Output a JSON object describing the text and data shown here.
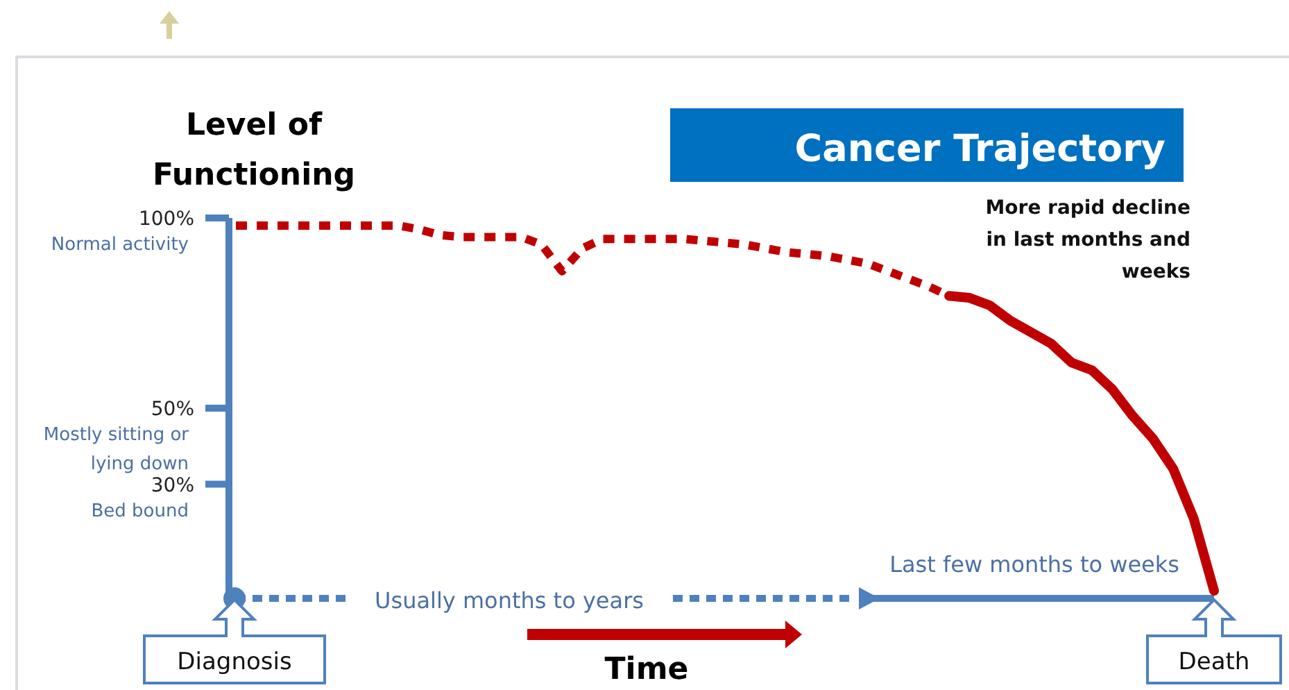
{
  "chart_data": {
    "type": "line",
    "title": "Cancer Trajectory",
    "ylabel": "Level of Functioning",
    "categories": [
      null,
      null,
      null,
      null,
      null,
      null,
      null,
      null,
      null,
      null,
      null,
      null,
      null,
      null,
      null,
      null,
      null,
      null,
      null,
      null,
      null,
      null,
      null,
      null,
      null,
      null,
      null,
      null,
      null,
      null,
      null,
      null,
      null,
      null,
      null,
      null,
      null,
      null,
      null,
      null,
      null,
      null,
      null,
      null,
      null,
      null,
      null,
      null,
      null
    ],
    "series": [
      {
        "color": "#c00000",
        "line_style": "dotted",
        "values": [
          98,
          98,
          98,
          98,
          98,
          98,
          98,
          98,
          98,
          97,
          95.5,
          95,
          95,
          95,
          95,
          93,
          86,
          92,
          94.5,
          94.5,
          94.5,
          94.5,
          94.5,
          94,
          93.5,
          93,
          92,
          91,
          90.5,
          90,
          89,
          88,
          86,
          84,
          82,
          79.5,
          null,
          null,
          null,
          null,
          null,
          null,
          null,
          null,
          null,
          null,
          null,
          null,
          null
        ]
      },
      {
        "color": "#c00000",
        "line_style": "solid",
        "values": [
          null,
          null,
          null,
          null,
          null,
          null,
          null,
          null,
          null,
          null,
          null,
          null,
          null,
          null,
          null,
          null,
          null,
          null,
          null,
          null,
          null,
          null,
          null,
          null,
          null,
          null,
          null,
          null,
          null,
          null,
          null,
          null,
          null,
          null,
          null,
          79.5,
          79,
          77,
          73,
          70,
          67,
          62,
          60,
          55,
          48,
          42,
          34,
          21,
          2
        ]
      }
    ],
    "ylim": [
      0,
      100
    ],
    "yticks": [
      {
        "value": 100,
        "label": "100%"
      },
      {
        "value": 50,
        "label": "50%"
      },
      {
        "value": 30,
        "label": "30%"
      }
    ],
    "annotations": [
      "Normal activity",
      "Mostly sitting or lying down",
      "Bed bound",
      "More rapid decline in last months and weeks",
      "Usually months to years",
      "Last few months to weeks",
      "Diagnosis",
      "Death",
      "Time"
    ]
  }
}
